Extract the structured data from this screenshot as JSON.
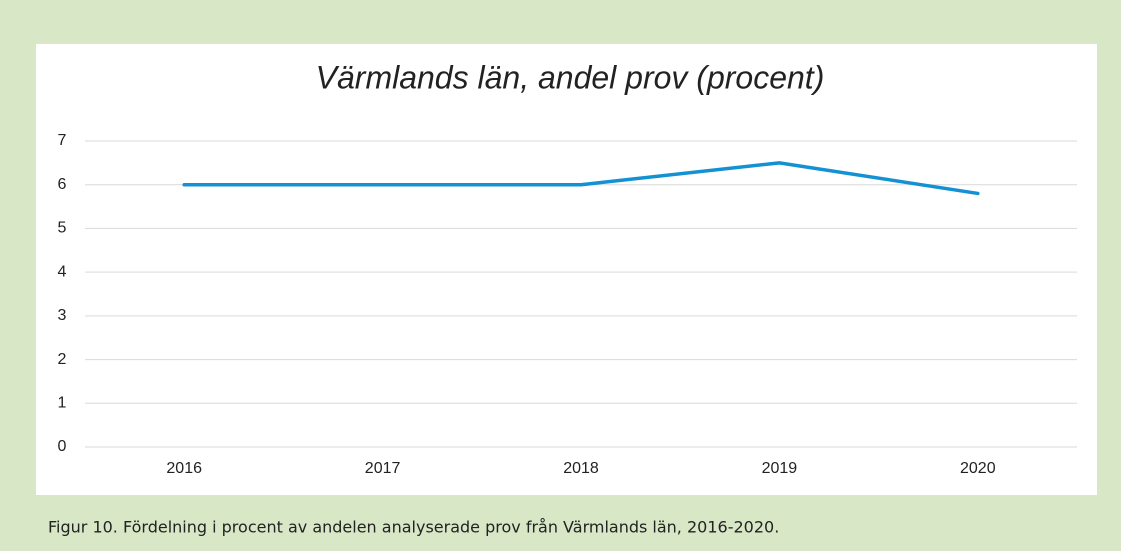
{
  "chart_data": {
    "type": "line",
    "title": "Värmlands län, andel prov (procent)",
    "categories": [
      "2016",
      "2017",
      "2018",
      "2019",
      "2020"
    ],
    "series": [
      {
        "name": "Andel prov",
        "color": "#1491d2",
        "values": [
          6.0,
          6.0,
          6.0,
          6.5,
          5.8
        ]
      }
    ],
    "ylim": [
      0,
      7
    ],
    "yticks": [
      0,
      1,
      2,
      3,
      4,
      5,
      6,
      7
    ],
    "grid": true,
    "legend": false
  },
  "caption": "Figur 10. Fördelning i procent av andelen analyserade prov från Värmlands län, 2016-2020."
}
